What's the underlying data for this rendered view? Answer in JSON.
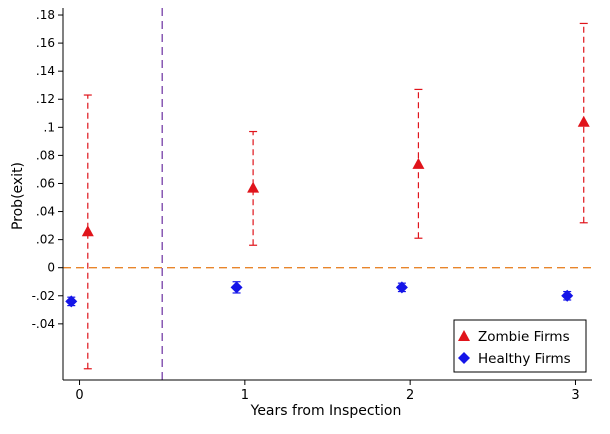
{
  "chart_data": {
    "type": "scatter",
    "xlabel": "Years from Inspection",
    "ylabel": "Prob(exit)",
    "x_ticks": [
      "0",
      "1",
      "2",
      "3"
    ],
    "y_ticks": [
      {
        "v": 0.18,
        "label": ".18"
      },
      {
        "v": 0.16,
        "label": ".16"
      },
      {
        "v": 0.14,
        "label": ".14"
      },
      {
        "v": 0.12,
        "label": ".12"
      },
      {
        "v": 0.1,
        "label": ".1"
      },
      {
        "v": 0.08,
        "label": ".08"
      },
      {
        "v": 0.06,
        "label": ".06"
      },
      {
        "v": 0.04,
        "label": ".04"
      },
      {
        "v": 0.02,
        "label": ".02"
      },
      {
        "v": 0.0,
        "label": "0"
      },
      {
        "v": -0.02,
        "label": "-.02"
      },
      {
        "v": -0.04,
        "label": "-.04"
      }
    ],
    "xlim": [
      -0.1,
      3.1
    ],
    "ylim": [
      -0.08,
      0.185
    ],
    "reference_lines": {
      "horizontal_zero": {
        "y": 0,
        "color": "#E8852B",
        "style": "dashed"
      },
      "vertical": {
        "x": 0.5,
        "color": "#6A2FA0",
        "style": "dashed"
      }
    },
    "series": [
      {
        "name": "Zombie Firms",
        "marker": "triangle",
        "color": "#E0141B",
        "errorbar_style": "dashed",
        "points": [
          {
            "x": 0.05,
            "y": 0.026,
            "lo": -0.072,
            "hi": 0.123
          },
          {
            "x": 1.05,
            "y": 0.057,
            "lo": 0.016,
            "hi": 0.097
          },
          {
            "x": 2.05,
            "y": 0.074,
            "lo": 0.021,
            "hi": 0.127
          },
          {
            "x": 3.05,
            "y": 0.104,
            "lo": 0.032,
            "hi": 0.174
          }
        ]
      },
      {
        "name": "Healthy Firms",
        "marker": "diamond",
        "color": "#1515E8",
        "errorbar_style": "solid",
        "points": [
          {
            "x": -0.05,
            "y": -0.024,
            "lo": -0.027,
            "hi": -0.021
          },
          {
            "x": 0.95,
            "y": -0.014,
            "lo": -0.018,
            "hi": -0.01
          },
          {
            "x": 1.95,
            "y": -0.014,
            "lo": -0.017,
            "hi": -0.011
          },
          {
            "x": 2.95,
            "y": -0.02,
            "lo": -0.023,
            "hi": -0.017
          }
        ]
      }
    ],
    "legend": {
      "position": "bottom-right"
    }
  }
}
